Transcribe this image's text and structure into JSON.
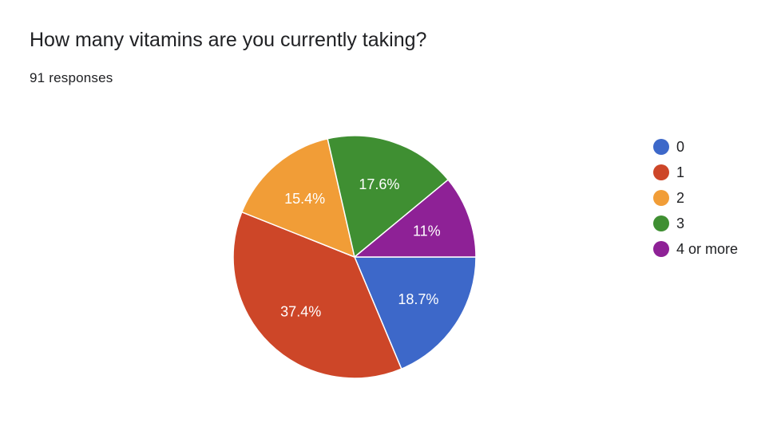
{
  "header": {
    "title": "How many vitamins are you currently taking?",
    "responses": "91 responses"
  },
  "chart_data": {
    "type": "pie",
    "title": "How many vitamins are you currently taking?",
    "total_responses": 91,
    "start_angle_deg": 90,
    "direction": "clockwise",
    "legend_position": "right",
    "slices": [
      {
        "label": "0",
        "value": 18.7,
        "display": "18.7%",
        "color": "#3d68c9"
      },
      {
        "label": "1",
        "value": 37.4,
        "display": "37.4%",
        "color": "#cd4628"
      },
      {
        "label": "2",
        "value": 15.4,
        "display": "15.4%",
        "color": "#f19d37"
      },
      {
        "label": "3",
        "value": 17.6,
        "display": "17.6%",
        "color": "#3f8f32"
      },
      {
        "label": "4 or more",
        "value": 11,
        "display": "11%",
        "color": "#8e2196"
      }
    ]
  }
}
